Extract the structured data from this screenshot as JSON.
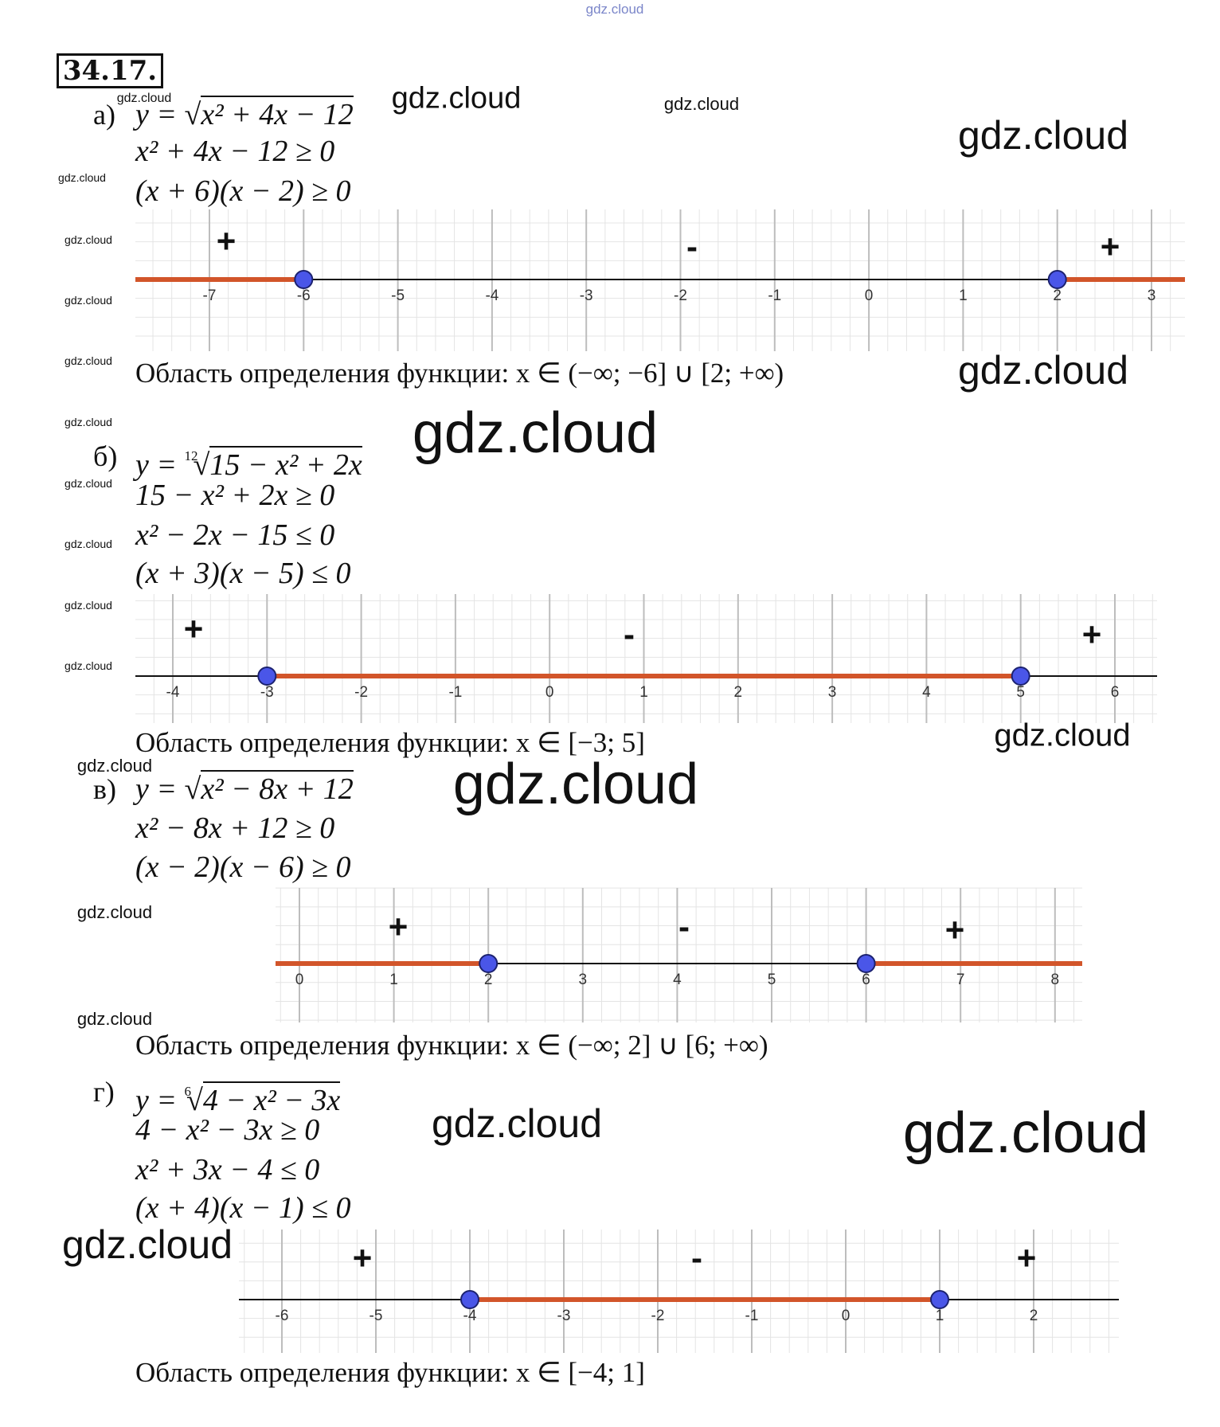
{
  "header": {
    "number": "34.17."
  },
  "parts": [
    {
      "label": "а)",
      "equation": {
        "prefix": "y = ",
        "root": "√",
        "radicand": "x² + 4x − 12"
      },
      "steps": [
        "x² + 4x − 12 ≥ 0",
        "(x + 6)(x − 2) ≥ 0"
      ],
      "number_line": {
        "ticks": [
          -7,
          -6,
          -5,
          -4,
          -3,
          -2,
          -1,
          0,
          1,
          2,
          3
        ],
        "points": [
          -6,
          2
        ],
        "shaded": "outside",
        "signs": [
          "+",
          "-",
          "+"
        ]
      },
      "answer": "Область определения функции: x ∈ (−∞;  −6] ∪ [2; +∞)"
    },
    {
      "label": "б)",
      "equation": {
        "prefix": "y = ",
        "index": "12",
        "root": "√",
        "radicand": "15 − x² + 2x"
      },
      "steps": [
        "15 − x² + 2x ≥ 0",
        "x² − 2x − 15 ≤ 0",
        "(x + 3)(x − 5) ≤ 0"
      ],
      "number_line": {
        "ticks": [
          -4,
          -3,
          -2,
          -1,
          0,
          1,
          2,
          3,
          4,
          5,
          6
        ],
        "points": [
          -3,
          5
        ],
        "shaded": "inside",
        "signs": [
          "+",
          "-",
          "+"
        ]
      },
      "answer": "Область определения функции: x ∈ [−3; 5]"
    },
    {
      "label": "в)",
      "equation": {
        "prefix": "y = ",
        "root": "√",
        "radicand": "x² − 8x + 12"
      },
      "steps": [
        "x² − 8x + 12 ≥ 0",
        "(x − 2)(x − 6) ≥ 0"
      ],
      "number_line": {
        "ticks": [
          0,
          1,
          2,
          3,
          4,
          5,
          6,
          7,
          8
        ],
        "points": [
          2,
          6
        ],
        "shaded": "outside",
        "signs": [
          "+",
          "-",
          "+"
        ]
      },
      "answer": "Область определения функции: x ∈ (−∞;  2] ∪ [6; +∞)"
    },
    {
      "label": "г)",
      "equation": {
        "prefix": "y = ",
        "index": "6",
        "root": "√",
        "radicand": "4 − x² − 3x"
      },
      "steps": [
        "4 − x² − 3x ≥ 0",
        "x² + 3x − 4 ≤ 0",
        "(x + 4)(x − 1) ≤ 0"
      ],
      "number_line": {
        "ticks": [
          -6,
          -5,
          -4,
          -3,
          -2,
          -1,
          0,
          1,
          2
        ],
        "points": [
          -4,
          1
        ],
        "shaded": "inside",
        "signs": [
          "+",
          "-",
          "+"
        ]
      },
      "answer": "Область определения функции: x ∈ [−4; 1]"
    }
  ],
  "watermarks": [
    "gdz.cloud",
    "gdz.cloud",
    "gdz.cloud",
    "gdz.cloud",
    "gdz.cloud",
    "gdz.cloud",
    "gdz.cloud",
    "gdz.cloud",
    "gdz.cloud",
    "gdz.cloud",
    "gdz.cloud",
    "gdz.cloud",
    "gdz.cloud",
    "gdz.cloud",
    "gdz.cloud",
    "gdz.cloud",
    "gdz.cloud",
    "gdz.cloud",
    "gdz.cloud",
    "gdz.cloud",
    "gdz.cloud",
    "gdz.cloud",
    "gdz.cloud",
    "gdz.cloud"
  ]
}
